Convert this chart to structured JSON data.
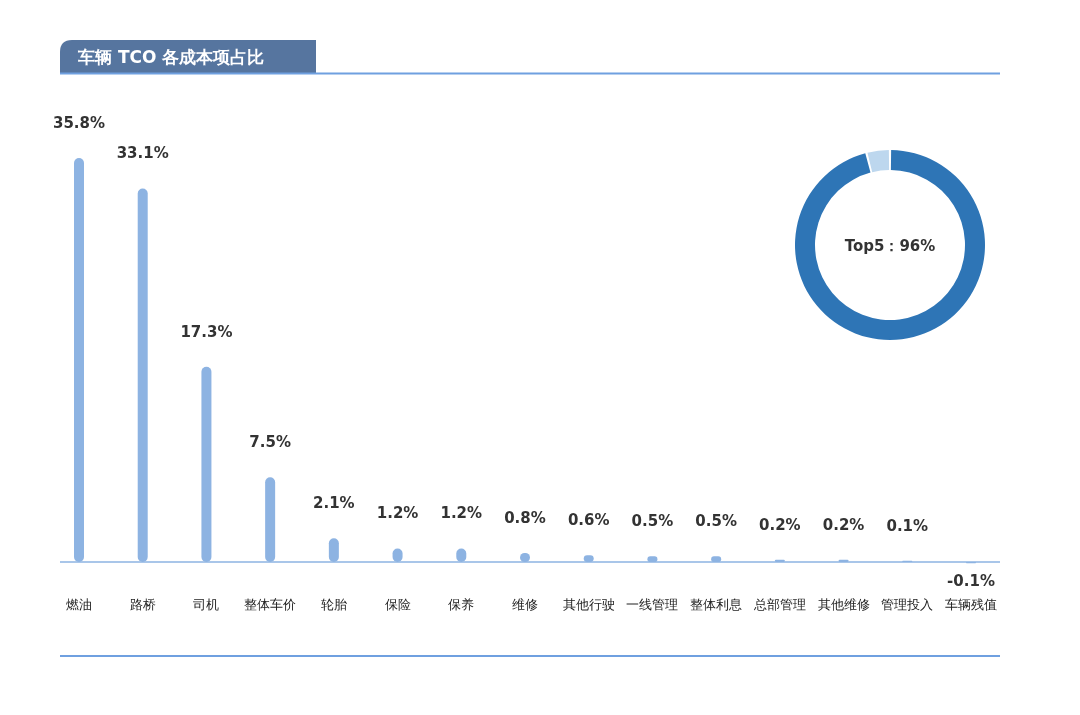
{
  "chart_data": [
    {
      "type": "bar",
      "title": "车辆 TCO 各成本项占比",
      "categories": [
        "燃油",
        "路桥",
        "司机",
        "整体车价",
        "轮胎",
        "保险",
        "保养",
        "维修",
        "其他行驶",
        "一线管理",
        "整体利息",
        "总部管理",
        "其他维修",
        "管理投入",
        "车辆残值"
      ],
      "values": [
        35.8,
        33.1,
        17.3,
        7.5,
        2.1,
        1.2,
        1.2,
        0.8,
        0.6,
        0.5,
        0.5,
        0.2,
        0.2,
        0.1,
        -0.1
      ],
      "value_labels": [
        "35.8%",
        "33.1%",
        "17.3%",
        "7.5%",
        "2.1%",
        "1.2%",
        "1.2%",
        "0.8%",
        "0.6%",
        "0.5%",
        "0.5%",
        "0.2%",
        "0.2%",
        "0.1%",
        "-0.1%"
      ],
      "color": "#8db3e2"
    },
    {
      "type": "donut",
      "categories": [
        null,
        null
      ],
      "values": [
        96,
        4
      ],
      "colors": [
        "#2e75b6",
        "#bdd7ee"
      ],
      "annotations": [
        "Top5：96%"
      ]
    }
  ]
}
